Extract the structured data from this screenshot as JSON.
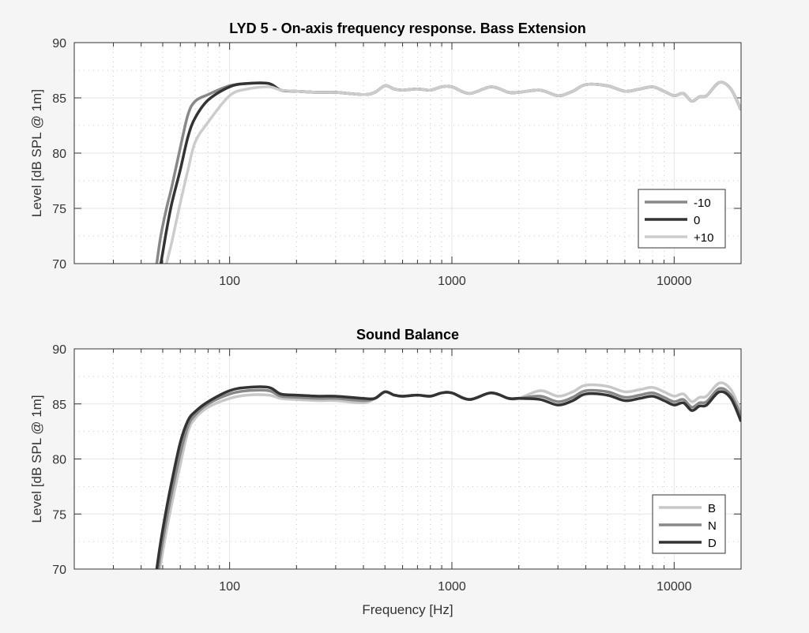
{
  "chart_data": [
    {
      "type": "line",
      "title": "LYD 5 - On-axis frequency response. Bass Extension",
      "xlabel": "",
      "ylabel": "Level [dB SPL @ 1m]",
      "xscale": "log",
      "xlim": [
        20,
        20000
      ],
      "ylim": [
        70,
        90
      ],
      "xticks": [
        100,
        1000,
        10000
      ],
      "xtick_labels": [
        "100",
        "1000",
        "10000"
      ],
      "yticks": [
        70,
        75,
        80,
        85,
        90
      ],
      "ytick_labels": [
        "70",
        "75",
        "80",
        "85",
        "90"
      ],
      "grid": true,
      "legend": "bottom-right",
      "x": [
        47,
        49,
        52,
        55,
        60,
        65,
        70,
        80,
        100,
        120,
        150,
        170,
        200,
        250,
        300,
        400,
        450,
        500,
        550,
        600,
        700,
        800,
        900,
        1000,
        1200,
        1500,
        1800,
        2000,
        2500,
        3000,
        3500,
        4000,
        5000,
        6000,
        7000,
        8000,
        9000,
        10000,
        11000,
        12000,
        13000,
        14000,
        16000,
        18000,
        20000
      ],
      "series": [
        {
          "name": "-10",
          "color": "#888888",
          "values": [
            70,
            72.5,
            75,
            77,
            80.5,
            83.5,
            84.7,
            85.3,
            86.1,
            86.3,
            86.3,
            85.7,
            85.6,
            85.5,
            85.5,
            85.3,
            85.5,
            86.1,
            85.8,
            85.7,
            85.8,
            85.7,
            86.0,
            86.0,
            85.4,
            86.0,
            85.5,
            85.5,
            85.7,
            85.2,
            85.6,
            86.2,
            86.1,
            85.6,
            85.8,
            86.0,
            85.6,
            85.2,
            85.4,
            84.7,
            85.1,
            85.2,
            86.4,
            85.8,
            83.9
          ]
        },
        {
          "name": "0",
          "color": "#333333",
          "values": [
            68.5,
            70,
            73,
            75.5,
            78.5,
            81.5,
            83.2,
            84.8,
            86.0,
            86.3,
            86.3,
            85.7,
            85.6,
            85.5,
            85.5,
            85.3,
            85.5,
            86.1,
            85.8,
            85.7,
            85.8,
            85.7,
            86.0,
            86.0,
            85.4,
            86.0,
            85.5,
            85.5,
            85.7,
            85.2,
            85.6,
            86.2,
            86.1,
            85.6,
            85.8,
            86.0,
            85.6,
            85.2,
            85.4,
            84.7,
            85.1,
            85.2,
            86.4,
            85.8,
            83.9
          ]
        },
        {
          "name": "+10",
          "color": "#cccccc",
          "values": [
            66,
            67.5,
            70,
            72,
            75.5,
            78.5,
            81,
            82.8,
            85.2,
            85.8,
            86.0,
            85.7,
            85.6,
            85.5,
            85.5,
            85.3,
            85.5,
            86.1,
            85.8,
            85.7,
            85.8,
            85.7,
            86.0,
            86.0,
            85.4,
            86.0,
            85.5,
            85.5,
            85.7,
            85.2,
            85.6,
            86.2,
            86.1,
            85.6,
            85.8,
            86.0,
            85.6,
            85.2,
            85.4,
            84.7,
            85.1,
            85.2,
            86.4,
            85.8,
            83.9
          ]
        }
      ]
    },
    {
      "type": "line",
      "title": "Sound Balance",
      "xlabel": "Frequency [Hz]",
      "ylabel": "Level [dB SPL @ 1m]",
      "xscale": "log",
      "xlim": [
        20,
        20000
      ],
      "ylim": [
        70,
        90
      ],
      "xticks": [
        100,
        1000,
        10000
      ],
      "xtick_labels": [
        "100",
        "1000",
        "10000"
      ],
      "yticks": [
        70,
        75,
        80,
        85,
        90
      ],
      "ytick_labels": [
        "70",
        "75",
        "80",
        "85",
        "90"
      ],
      "grid": true,
      "legend": "bottom-right",
      "x": [
        47,
        49,
        52,
        55,
        60,
        65,
        70,
        80,
        100,
        120,
        150,
        170,
        200,
        250,
        300,
        400,
        450,
        500,
        550,
        600,
        700,
        800,
        900,
        1000,
        1200,
        1500,
        1800,
        2000,
        2500,
        3000,
        3500,
        4000,
        5000,
        6000,
        7000,
        8000,
        9000,
        10000,
        11000,
        12000,
        13000,
        14000,
        16000,
        18000,
        20000
      ],
      "series": [
        {
          "name": "B",
          "color": "#c8c8c8",
          "values": [
            68,
            70.5,
            73.5,
            76,
            79.5,
            82.5,
            83.7,
            84.7,
            85.5,
            85.8,
            85.8,
            85.5,
            85.4,
            85.3,
            85.3,
            85.1,
            85.5,
            86.1,
            85.8,
            85.7,
            85.8,
            85.7,
            86.0,
            86.0,
            85.4,
            86.0,
            85.5,
            85.5,
            86.2,
            85.7,
            86.1,
            86.7,
            86.6,
            86.1,
            86.3,
            86.5,
            86.1,
            85.7,
            85.9,
            85.2,
            85.6,
            85.7,
            86.9,
            86.3,
            84.3
          ]
        },
        {
          "name": "N",
          "color": "#888888",
          "values": [
            69,
            71.5,
            74.5,
            77,
            80.5,
            83,
            84,
            85,
            85.9,
            86.2,
            86.2,
            85.7,
            85.6,
            85.5,
            85.5,
            85.3,
            85.5,
            86.1,
            85.8,
            85.7,
            85.8,
            85.7,
            86.0,
            86.0,
            85.4,
            86.0,
            85.5,
            85.5,
            85.7,
            85.2,
            85.6,
            86.2,
            86.1,
            85.6,
            85.8,
            86.0,
            85.6,
            85.2,
            85.4,
            84.7,
            85.1,
            85.2,
            86.4,
            85.8,
            83.9
          ]
        },
        {
          "name": "D",
          "color": "#333333",
          "values": [
            70,
            72.5,
            75.5,
            78,
            81.5,
            83.5,
            84.3,
            85.2,
            86.2,
            86.5,
            86.5,
            85.9,
            85.8,
            85.7,
            85.7,
            85.5,
            85.5,
            86.1,
            85.8,
            85.7,
            85.8,
            85.7,
            86.0,
            86.0,
            85.4,
            86.0,
            85.5,
            85.5,
            85.4,
            84.9,
            85.3,
            85.9,
            85.8,
            85.3,
            85.5,
            85.7,
            85.3,
            84.9,
            85.1,
            84.4,
            84.8,
            84.9,
            86.1,
            85.5,
            83.4
          ]
        }
      ]
    }
  ]
}
